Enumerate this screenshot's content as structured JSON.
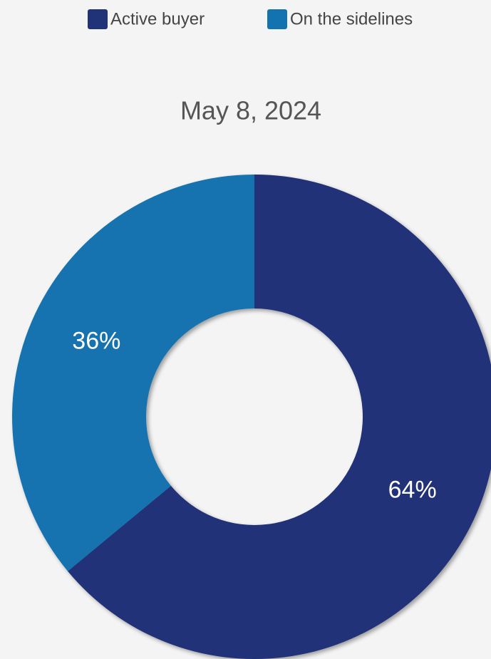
{
  "chart_data": {
    "type": "pie",
    "title": "May 8, 2024",
    "categories": [
      "Active buyer",
      "On the sidelines"
    ],
    "values": [
      64,
      36
    ],
    "value_labels": [
      "64%",
      "36%"
    ],
    "colors": [
      "#213378",
      "#1273b0"
    ]
  }
}
